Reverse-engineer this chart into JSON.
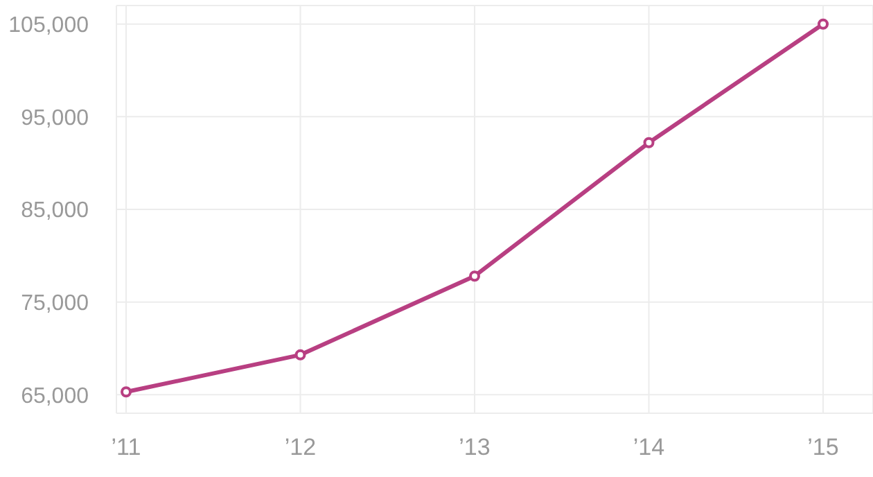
{
  "chart_data": {
    "type": "line",
    "categories": [
      "’11",
      "’12",
      "’13",
      "’14",
      "’15"
    ],
    "series": [
      {
        "color": "#b83f82",
        "values": [
          65300,
          69300,
          77800,
          92200,
          105000
        ]
      }
    ],
    "ylim": [
      63000,
      107000
    ],
    "yticks": [
      {
        "value": 65000,
        "label": "65,000"
      },
      {
        "value": 75000,
        "label": "75,000"
      },
      {
        "value": 85000,
        "label": "85,000"
      },
      {
        "value": 95000,
        "label": "95,000"
      },
      {
        "value": 105000,
        "label": "105,000"
      }
    ],
    "grid": true,
    "marker": "circle",
    "line_style": "solid"
  }
}
